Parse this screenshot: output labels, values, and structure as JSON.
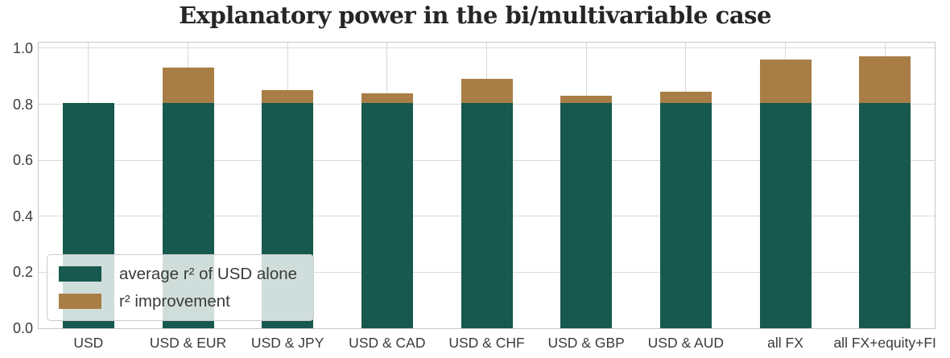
{
  "chart_data": {
    "type": "bar",
    "stacked": true,
    "title": "Explanatory power in the bi/multivariable case",
    "categories": [
      "USD",
      "USD & EUR",
      "USD & JPY",
      "USD & CAD",
      "USD & CHF",
      "USD & GBP",
      "USD & AUD",
      "all FX",
      "all FX+equity+FI"
    ],
    "series": [
      {
        "name": "average r² of USD alone",
        "color": "#17594e",
        "values": [
          0.805,
          0.805,
          0.805,
          0.805,
          0.805,
          0.805,
          0.805,
          0.805,
          0.805
        ]
      },
      {
        "name": "r² improvement",
        "color": "#a87e46",
        "values": [
          0,
          0.125,
          0.045,
          0.035,
          0.085,
          0.025,
          0.04,
          0.155,
          0.165
        ]
      }
    ],
    "totals": [
      0.805,
      0.93,
      0.85,
      0.84,
      0.89,
      0.83,
      0.845,
      0.96,
      0.97
    ],
    "xlabel": "",
    "ylabel": "",
    "ylim": [
      0,
      1.02
    ],
    "yticks": [
      "0.0",
      "0.2",
      "0.4",
      "0.6",
      "0.8",
      "1.0"
    ],
    "grid": true,
    "legend_position": "lower left",
    "colors": {
      "grid": "#d9d9d9",
      "spine": "#c8c8c8",
      "tick_text": "#3b3b3b",
      "title_text": "#262626"
    }
  }
}
